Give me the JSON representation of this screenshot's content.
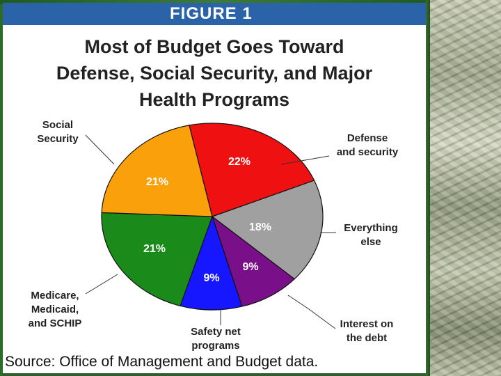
{
  "figure_label": "FIGURE 1",
  "chart_data": {
    "type": "pie",
    "title": [
      "Most of Budget Goes Toward",
      "Defense, Social Security, and Major",
      "Health Programs"
    ],
    "slices": [
      {
        "label": [
          "Defense",
          "and security"
        ],
        "value": 22,
        "value_label": "22%",
        "color": "#ef1111"
      },
      {
        "label": [
          "Everything",
          "else"
        ],
        "value": 18,
        "value_label": "18%",
        "color": "#a0a0a0"
      },
      {
        "label": [
          "Interest on",
          "the debt"
        ],
        "value": 9,
        "value_label": "9%",
        "color": "#7a0f8a"
      },
      {
        "label": [
          "Safety net",
          "programs"
        ],
        "value": 9,
        "value_label": "9%",
        "color": "#1616ff"
      },
      {
        "label": [
          "Medicare,",
          "Medicaid,",
          "and SCHIP"
        ],
        "value": 21,
        "value_label": "21%",
        "color": "#1a8a1a"
      },
      {
        "label": [
          "Social",
          "Security"
        ],
        "value": 21,
        "value_label": "21%",
        "color": "#f9a00a"
      }
    ],
    "source": "Source: Office of Management and Budget data."
  }
}
